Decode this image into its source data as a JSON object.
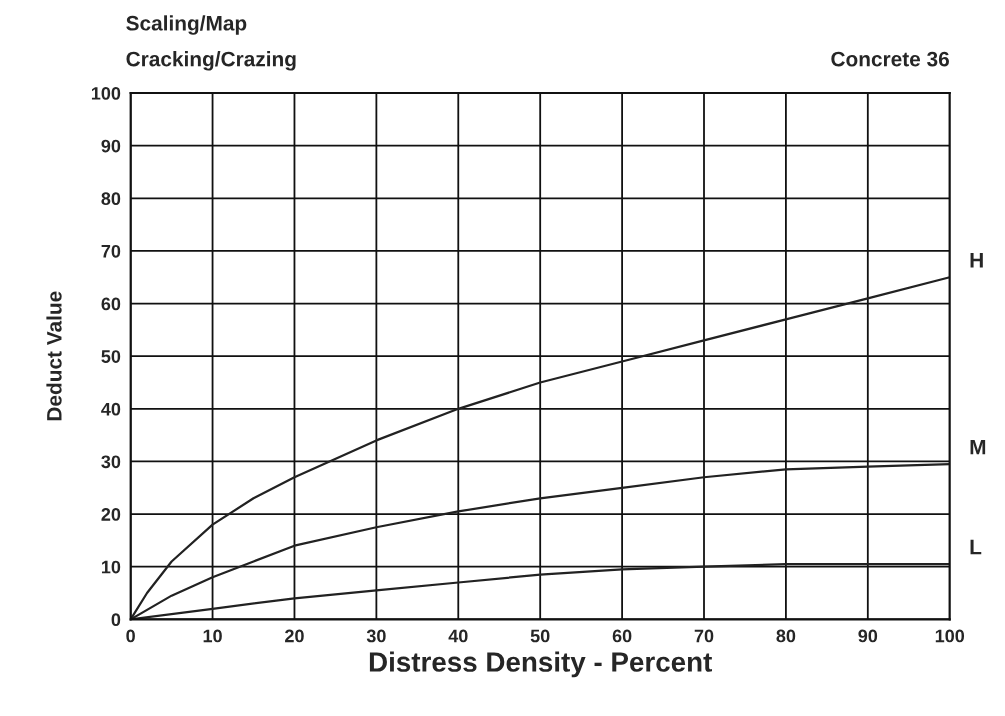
{
  "chart_data": {
    "type": "line",
    "title": "Scaling/Map",
    "subtitle": "Cracking/Crazing",
    "xlabel": "Distress Density - Percent",
    "ylabel": "Deduct Value",
    "annotations": [
      "Concrete 36"
    ],
    "xlim": [
      0,
      100
    ],
    "ylim": [
      0,
      100
    ],
    "xticks": [
      0,
      10,
      20,
      30,
      40,
      50,
      60,
      70,
      80,
      90,
      100
    ],
    "yticks": [
      0,
      10,
      20,
      30,
      40,
      50,
      60,
      70,
      80,
      90,
      100
    ],
    "grid": true,
    "legend": false,
    "series": [
      {
        "name": "H",
        "color": "#222222",
        "x": [
          0,
          2,
          5,
          10,
          15,
          20,
          30,
          40,
          50,
          60,
          70,
          80,
          90,
          100
        ],
        "values": [
          0,
          5,
          11,
          18,
          23,
          27,
          34,
          40,
          45,
          49,
          53,
          57,
          61,
          65
        ]
      },
      {
        "name": "M",
        "color": "#222222",
        "x": [
          0,
          5,
          10,
          15,
          20,
          30,
          40,
          50,
          60,
          70,
          80,
          90,
          100
        ],
        "values": [
          0,
          4.5,
          8,
          11,
          14,
          17.5,
          20.5,
          23,
          25,
          27,
          28.5,
          29,
          29.5
        ]
      },
      {
        "name": "L",
        "color": "#222222",
        "x": [
          0,
          10,
          20,
          30,
          40,
          50,
          60,
          70,
          80,
          90,
          100
        ],
        "values": [
          0,
          2,
          4,
          5.5,
          7,
          8.5,
          9.5,
          10,
          10.5,
          10.5,
          10.5
        ]
      }
    ]
  }
}
